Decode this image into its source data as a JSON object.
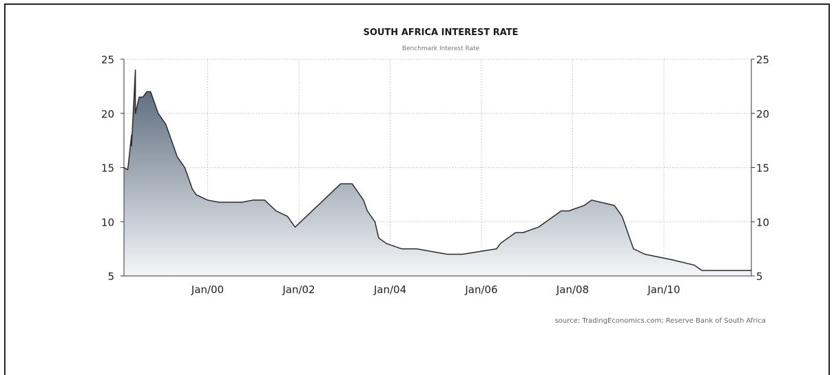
{
  "chart_data": {
    "type": "area",
    "title": "SOUTH AFRICA INTEREST RATE",
    "subtitle": "Benchmark Interest Rate",
    "source": "source: TradingEconomics.com; Reserve Bank of South Africa",
    "xlabel": "",
    "ylabel": "",
    "x_ticks": [
      "Jan/00",
      "Jan/02",
      "Jan/04",
      "Jan/06",
      "Jan/08",
      "Jan/10"
    ],
    "y_ticks": [
      5,
      10,
      15,
      20,
      25
    ],
    "ylim": [
      5,
      25
    ],
    "xlim": [
      "1998-03",
      "2011-12"
    ],
    "grid": true,
    "dual_y_axis": true,
    "colors": {
      "line": "#2b2b2b",
      "fill_top": "#4f5f72",
      "fill_bottom": "#f4f6f9",
      "grid": "#cccccc"
    },
    "series": [
      {
        "x": [
          "1998-03",
          "1998-04",
          "1998-05",
          "1998-05",
          "1998-06",
          "1998-06",
          "1998-07",
          "1998-08",
          "1998-09",
          "1998-10",
          "1998-11",
          "1998-12",
          "1999-01",
          "1999-02",
          "1999-03",
          "1999-04",
          "1999-05",
          "1999-06",
          "1999-07",
          "1999-08",
          "1999-09",
          "1999-10",
          "2000-01",
          "2000-04",
          "2000-07",
          "2000-10",
          "2001-01",
          "2001-04",
          "2001-07",
          "2001-10",
          "2001-12",
          "2002-03",
          "2002-06",
          "2002-09",
          "2002-12",
          "2003-03",
          "2003-06",
          "2003-07",
          "2003-09",
          "2003-10",
          "2003-12",
          "2004-04",
          "2004-08",
          "2005-04",
          "2005-08",
          "2006-05",
          "2006-06",
          "2006-08",
          "2006-10",
          "2006-12",
          "2007-04",
          "2007-06",
          "2007-08",
          "2007-10",
          "2007-12",
          "2008-04",
          "2008-06",
          "2008-12",
          "2009-02",
          "2009-03",
          "2009-05",
          "2009-08",
          "2010-03",
          "2010-09",
          "2010-11",
          "2011-12"
        ],
        "values": [
          15.0,
          14.8,
          18.0,
          17.0,
          24.0,
          20.0,
          21.5,
          21.5,
          22.0,
          22.0,
          21.0,
          20.0,
          19.5,
          19.0,
          18.0,
          17.0,
          16.0,
          15.5,
          15.0,
          14.0,
          13.0,
          12.5,
          12.0,
          11.8,
          11.8,
          11.8,
          12.0,
          12.0,
          11.0,
          10.5,
          9.5,
          10.5,
          11.5,
          12.5,
          13.5,
          13.5,
          12.0,
          11.0,
          10.0,
          8.5,
          8.0,
          7.5,
          7.5,
          7.0,
          7.0,
          7.5,
          8.0,
          8.5,
          9.0,
          9.0,
          9.5,
          10.0,
          10.5,
          11.0,
          11.0,
          11.5,
          12.0,
          11.5,
          10.5,
          9.5,
          7.5,
          7.0,
          6.5,
          6.0,
          5.5,
          5.5
        ]
      }
    ]
  }
}
